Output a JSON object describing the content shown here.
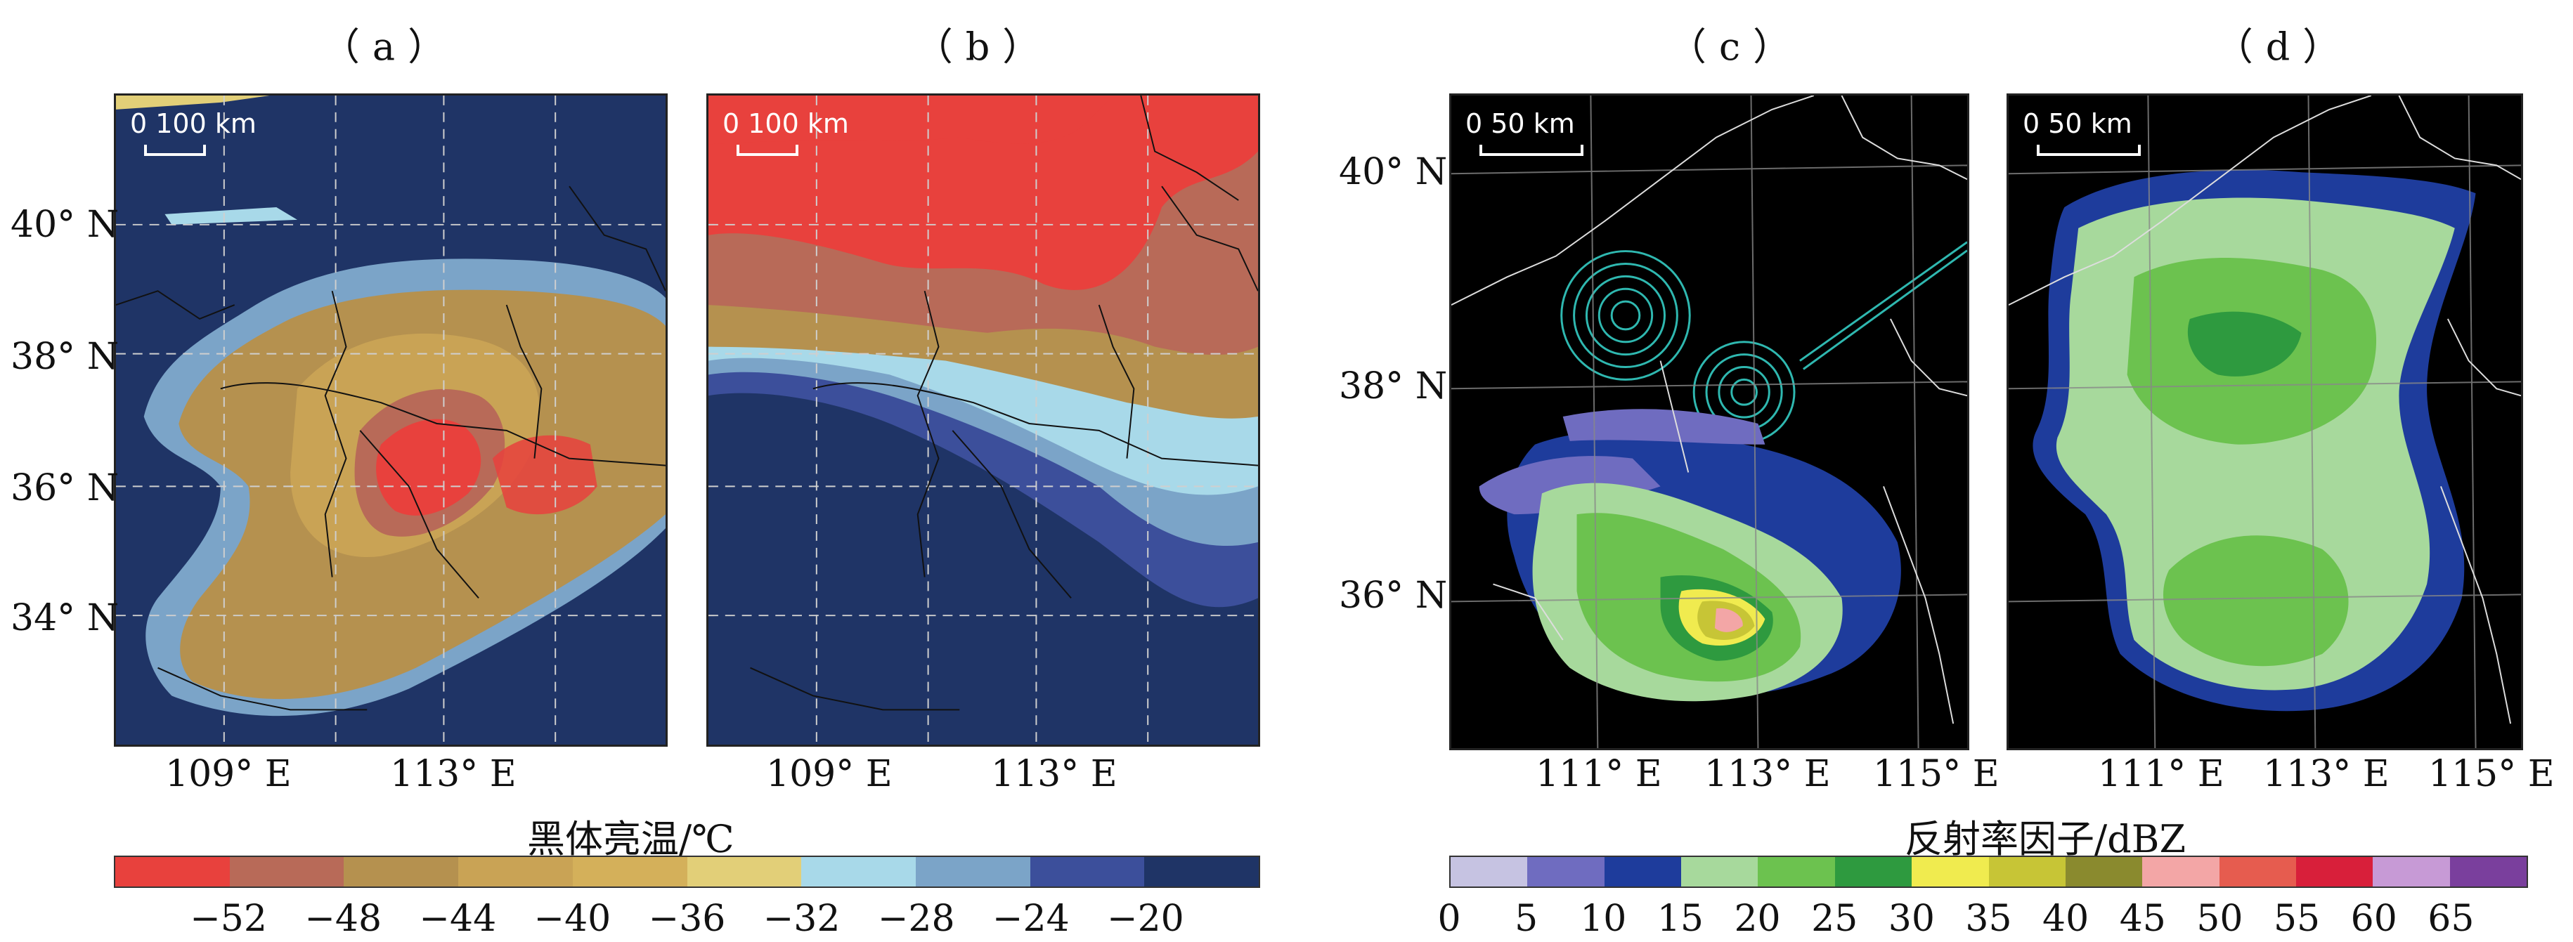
{
  "panels": {
    "a": {
      "label": "（a）",
      "scale_text": "0  100 km"
    },
    "b": {
      "label": "（b）",
      "scale_text": "0  100 km"
    },
    "c": {
      "label": "（c）",
      "scale_text": "0     50 km"
    },
    "d": {
      "label": "（d）",
      "scale_text": "0     50 km"
    }
  },
  "ir_axes": {
    "lat_labels": [
      "40° N",
      "38° N",
      "36° N",
      "34° N"
    ],
    "lon_labels": [
      "109° E",
      "113° E"
    ]
  },
  "radar_axes": {
    "lat_labels": [
      "40° N",
      "38° N",
      "36° N"
    ],
    "lon_labels": [
      "111° E",
      "113° E",
      "115° E"
    ]
  },
  "ir_colorbar": {
    "title": "黑体亮温/℃",
    "colors": [
      "#e8413d",
      "#b86a58",
      "#b5914f",
      "#c9a355",
      "#d4b05a",
      "#e2cf78",
      "#a8d9e9",
      "#7ba4c8",
      "#3c4f9b",
      "#1f3466"
    ],
    "tick_labels": [
      "−52",
      "−48",
      "−44",
      "−40",
      "−36",
      "−32",
      "−28",
      "−24",
      "−20"
    ]
  },
  "radar_colorbar": {
    "title": "反射率因子/dBZ",
    "colors": [
      "#c6c3e2",
      "#6f6cc0",
      "#1e3c9c",
      "#a7d99c",
      "#6cc24f",
      "#2e9a3f",
      "#f0eb4f",
      "#c7c536",
      "#8a8a2e",
      "#f3a6a6",
      "#e65c4f",
      "#d81f3a",
      "#c79ad6",
      "#7a3f9d"
    ],
    "tick_labels": [
      "0",
      "5",
      "10",
      "15",
      "20",
      "25",
      "30",
      "35",
      "40",
      "45",
      "50",
      "55",
      "60",
      "65"
    ]
  }
}
